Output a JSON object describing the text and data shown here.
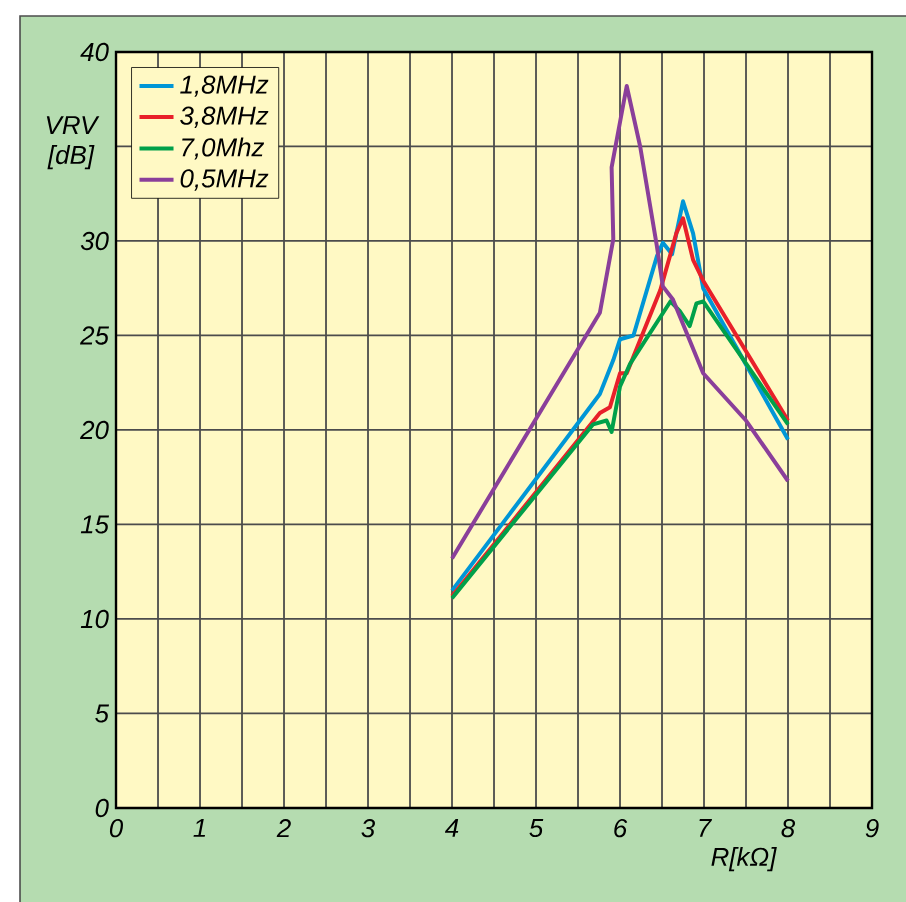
{
  "chart_data": {
    "type": "line",
    "xlabel": "R[kΩ]",
    "ylabel": "VRV [dB]",
    "xlim": [
      0,
      9
    ],
    "ylim": [
      0,
      40
    ],
    "xticks": [
      0,
      {
        "value": 0.5,
        "label": null
      },
      1,
      {
        "value": 1.5,
        "label": null
      },
      2,
      {
        "value": 2.5,
        "label": null
      },
      3,
      {
        "value": 3.5,
        "label": null
      },
      4,
      {
        "value": 4.5,
        "label": null
      },
      5,
      {
        "value": 5.5,
        "label": null
      },
      6,
      {
        "value": 6.5,
        "label": null
      },
      7,
      {
        "value": 7.5,
        "label": null
      },
      8,
      {
        "value": 8.5,
        "label": null
      },
      9
    ],
    "yticks": [
      0,
      5,
      10,
      15,
      20,
      25,
      30,
      {
        "value": 35,
        "label": null
      },
      40
    ],
    "grid": true,
    "legend": "top left",
    "marker": "none",
    "line_style": "solid",
    "series": [
      {
        "name": "1,8MHz",
        "color": "#0096d6",
        "x": [
          4,
          5.76,
          5.92,
          6,
          6.16,
          6.44,
          6.51,
          6.62,
          6.75,
          6.87,
          6.99,
          8
        ],
        "values": [
          11.5,
          21.9,
          23.7,
          24.8,
          25,
          29.2,
          29.9,
          29.3,
          32.1,
          30.4,
          27.5,
          19.5
        ]
      },
      {
        "name": "3,8MHz",
        "color": "#e8202a",
        "x": [
          4,
          5.76,
          5.88,
          6,
          6.08,
          6.48,
          6.67,
          6.75,
          6.87,
          6.99,
          8
        ],
        "values": [
          11.2,
          20.9,
          21.2,
          23,
          23,
          27.4,
          30.4,
          31.2,
          29,
          27.9,
          20.5
        ]
      },
      {
        "name": "7,0Mhz",
        "color": "#00a04a",
        "x": [
          4,
          5.68,
          5.84,
          5.9,
          6,
          6.12,
          6.6,
          6.71,
          6.83,
          6.91,
          6.99,
          8
        ],
        "values": [
          11.1,
          20.3,
          20.5,
          19.9,
          22.3,
          23.5,
          26.8,
          26.3,
          25.5,
          26.7,
          26.8,
          20.3
        ]
      },
      {
        "name": "0,5MHz",
        "color": "#8a3f9a",
        "x": [
          4,
          5.76,
          5.92,
          5.9,
          6.08,
          6.24,
          6.44,
          6.51,
          6.63,
          6.99,
          7.5,
          8
        ],
        "values": [
          13.2,
          26.2,
          30.1,
          33.9,
          38.2,
          35,
          29.7,
          27.6,
          26.9,
          23,
          20.5,
          17.3
        ]
      }
    ]
  }
}
